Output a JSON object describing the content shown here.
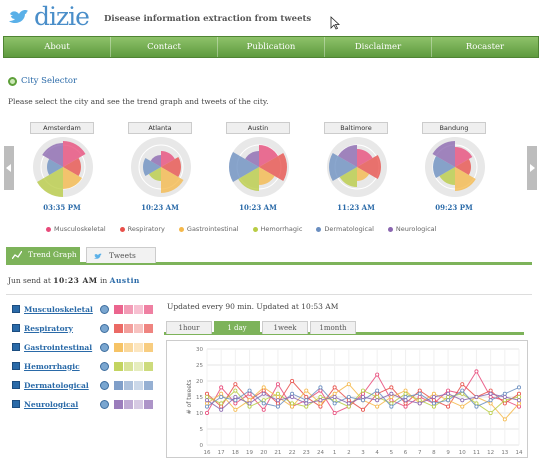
{
  "header": {
    "logo": "dizie",
    "tagline": "Disease information extraction from tweets"
  },
  "nav": [
    "About",
    "Contact",
    "Publication",
    "Disclaimer",
    "Rocaster"
  ],
  "city_selector": {
    "title": "City Selector",
    "intro": "Please select the city and see the trend graph and tweets of the city.",
    "cities": [
      {
        "name": "Amsterdam",
        "time": "03:35 PM"
      },
      {
        "name": "Atlanta",
        "time": "10:23 AM"
      },
      {
        "name": "Austin",
        "time": "10:23 AM"
      },
      {
        "name": "Baltimore",
        "time": "11:23 AM"
      },
      {
        "name": "Bandung",
        "time": "09:23 PM"
      }
    ]
  },
  "categories": [
    {
      "name": "Musculoskeletal",
      "color": "#e84a7a"
    },
    {
      "name": "Respiratory",
      "color": "#e8504a"
    },
    {
      "name": "Gastrointestinal",
      "color": "#f5b84a"
    },
    {
      "name": "Hemorrhagic",
      "color": "#b8cc44"
    },
    {
      "name": "Dermatological",
      "color": "#6a8ec0"
    },
    {
      "name": "Neurological",
      "color": "#8a66b0"
    }
  ],
  "tabs": {
    "trend": "Trend Graph",
    "tweets": "Tweets"
  },
  "status": {
    "prefix": "Jun send at",
    "time": "10:23 AM",
    "in": "in",
    "city": "Austin"
  },
  "graph": {
    "updated": "Updated every 90 min. Updated at 10:53 AM",
    "periods": [
      "1hour",
      "1 day",
      "1week",
      "1month"
    ]
  },
  "chart_data": {
    "type": "line",
    "ylabel": "# of tweets",
    "ylim": [
      0,
      30
    ],
    "yticks": [
      "30",
      "25",
      "20",
      "15",
      "10",
      "5",
      "0"
    ],
    "x": [
      "16",
      "17",
      "18",
      "19",
      "20",
      "21",
      "22",
      "23",
      "24",
      "1",
      "2",
      "3",
      "4",
      "5",
      "6",
      "7",
      "8",
      "9",
      "10",
      "11",
      "12",
      "13",
      "14"
    ],
    "series": [
      {
        "values": [
          10,
          18,
          13,
          16,
          11,
          19,
          12,
          14,
          17,
          10,
          12,
          16,
          22,
          14,
          12,
          15,
          13,
          17,
          16,
          23,
          15,
          14,
          12
        ],
        "color": "#e84a7a"
      },
      {
        "values": [
          16,
          12,
          19,
          14,
          17,
          13,
          20,
          15,
          12,
          18,
          14,
          11,
          16,
          18,
          13,
          17,
          14,
          12,
          19,
          15,
          17,
          13,
          16
        ],
        "color": "#e8504a"
      },
      {
        "values": [
          13,
          16,
          11,
          14,
          18,
          15,
          12,
          17,
          13,
          16,
          19,
          14,
          12,
          15,
          17,
          13,
          16,
          14,
          12,
          15,
          13,
          8,
          13
        ],
        "color": "#f5b84a"
      },
      {
        "values": [
          15,
          13,
          17,
          12,
          14,
          16,
          13,
          12,
          15,
          14,
          12,
          17,
          15,
          13,
          16,
          14,
          12,
          15,
          16,
          13,
          10,
          14,
          15
        ],
        "color": "#b8cc44"
      },
      {
        "values": [
          12,
          15,
          14,
          17,
          13,
          12,
          16,
          14,
          18,
          13,
          15,
          14,
          17,
          12,
          15,
          16,
          13,
          14,
          17,
          12,
          14,
          16,
          18
        ],
        "color": "#6a8ec0"
      },
      {
        "values": [
          14,
          11,
          15,
          13,
          16,
          14,
          15,
          13,
          14,
          15,
          13,
          15,
          14,
          16,
          14,
          13,
          15,
          16,
          14,
          15,
          16,
          15,
          14
        ],
        "color": "#8a66b0"
      }
    ]
  }
}
